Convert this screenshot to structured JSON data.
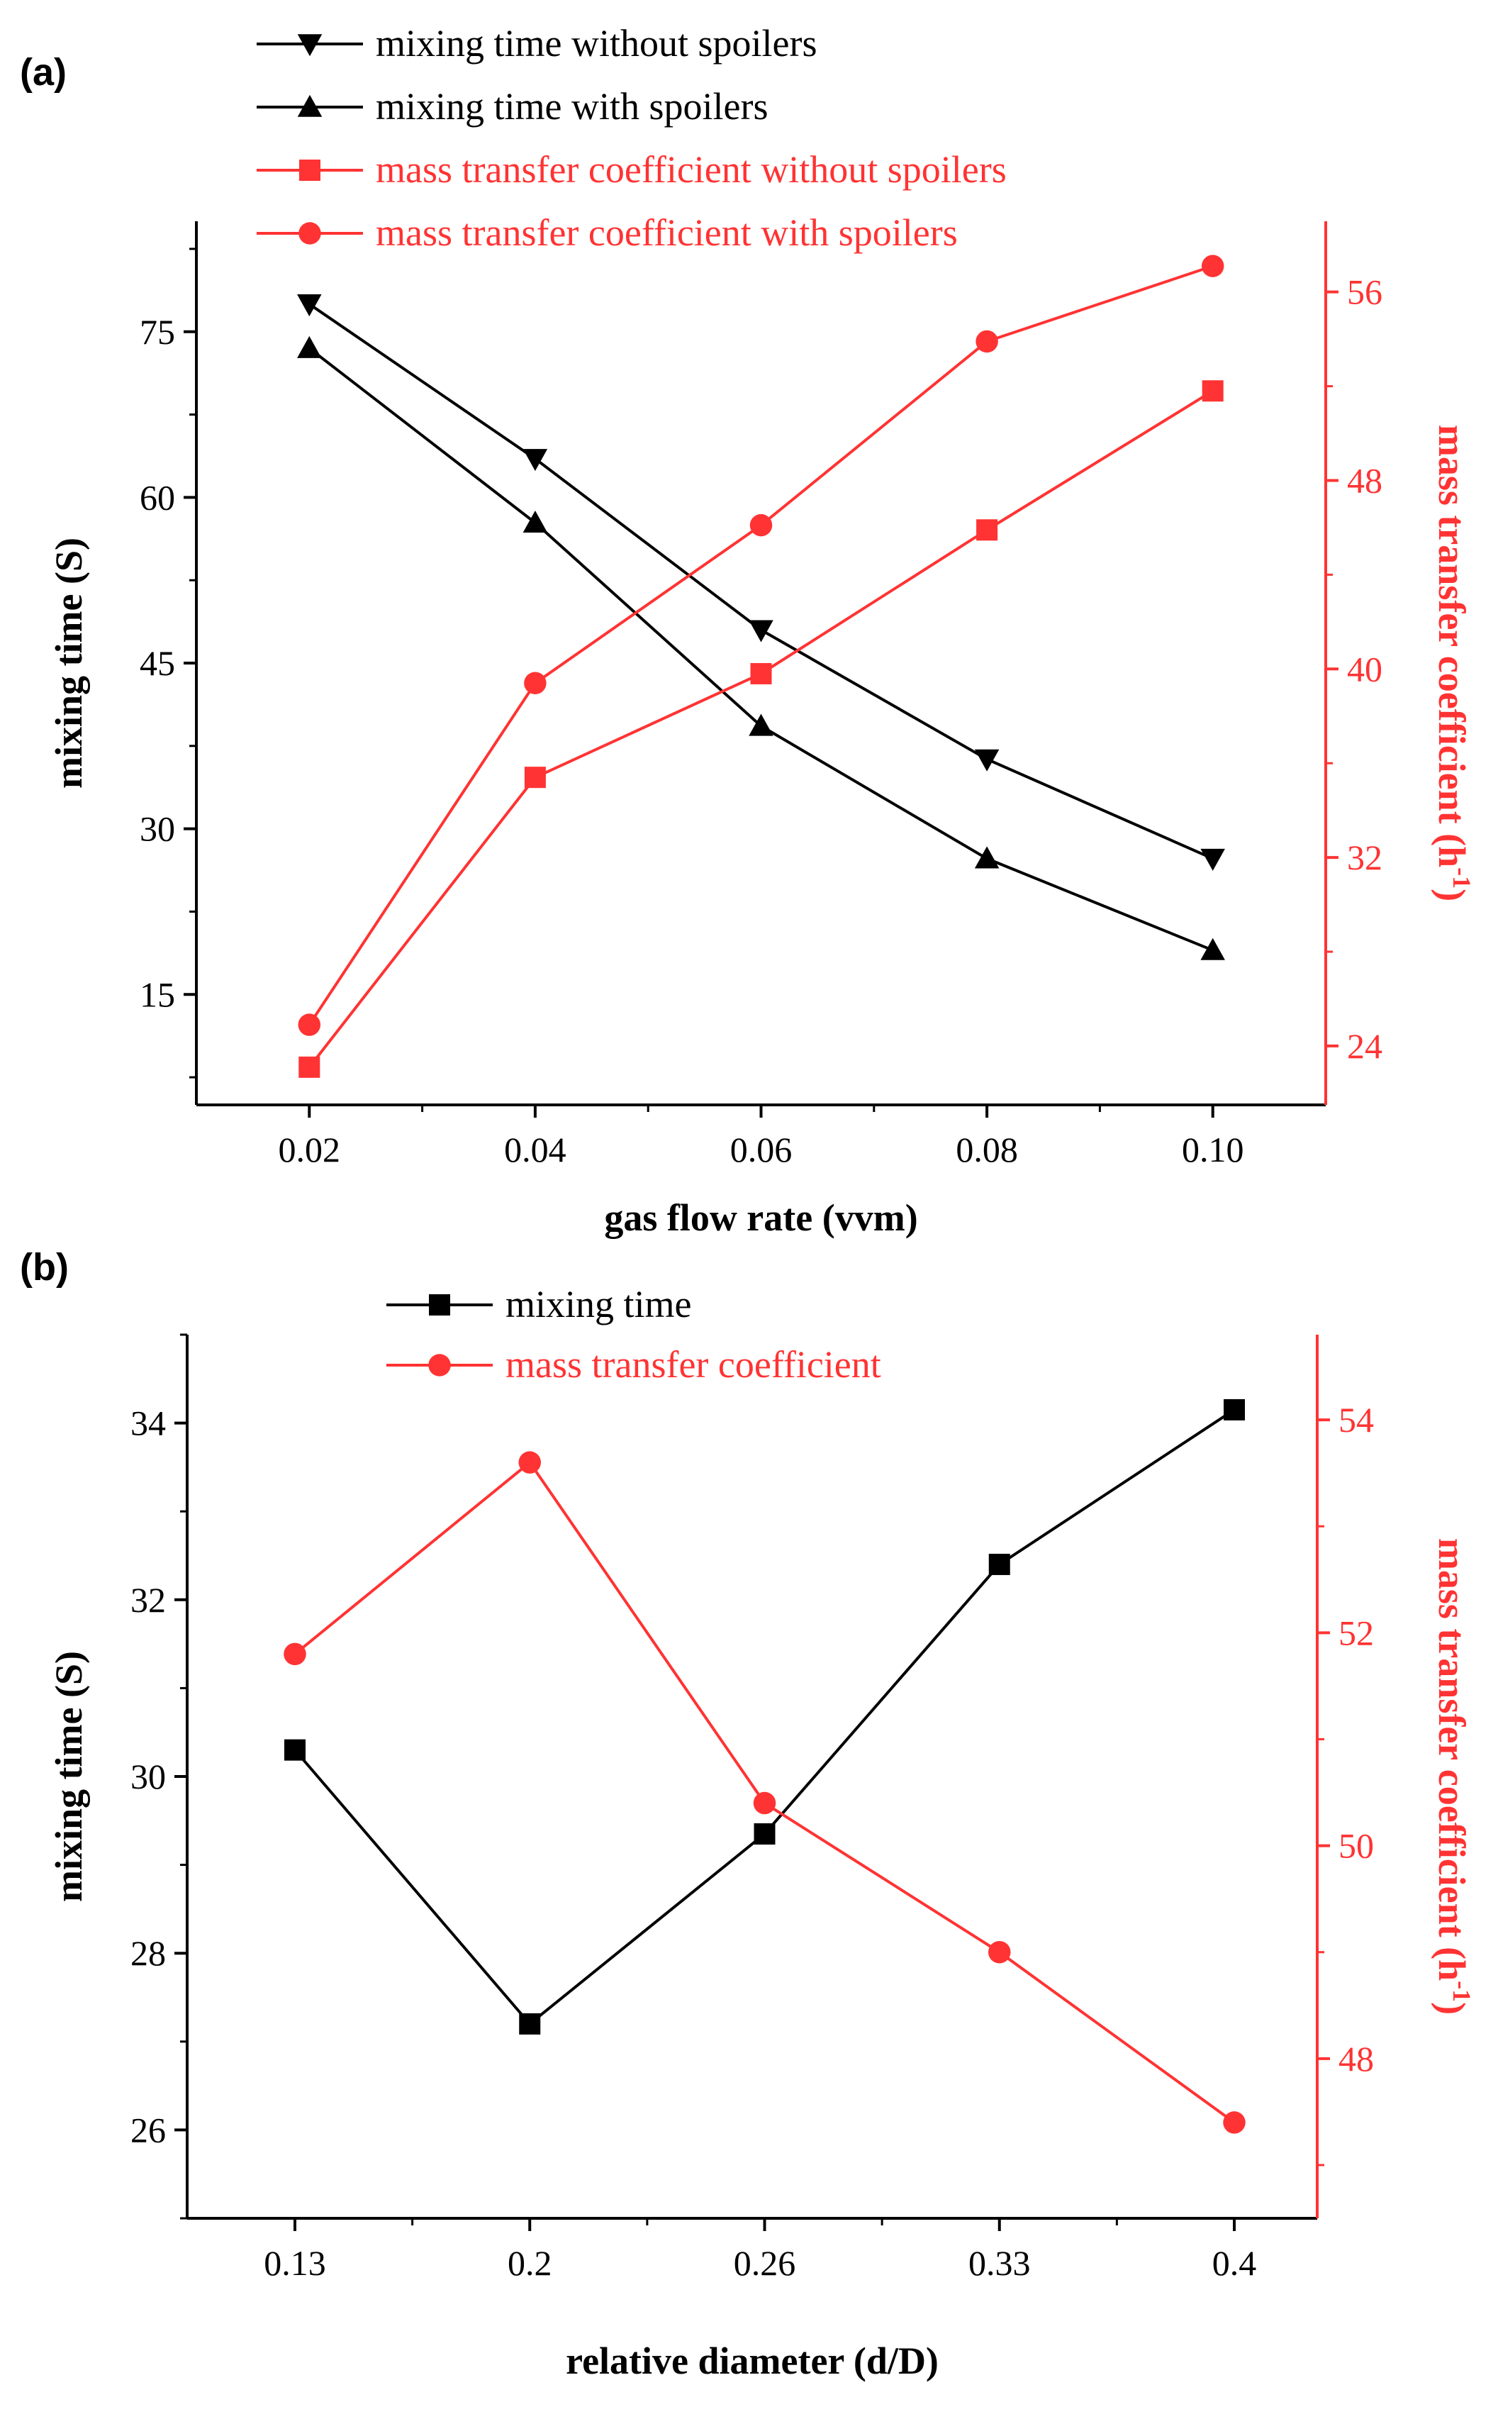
{
  "colors": {
    "black": "#000000",
    "red": "#ff3333"
  },
  "chart_data": [
    {
      "panel": "(a)",
      "type": "line",
      "xlabel": "gas flow rate (vvm)",
      "ylabel": "mixing time (S)",
      "y2label": "mass transfer coefficient (h",
      "y2label_sup": "-1",
      "y2label_close": ")",
      "x": [
        0.02,
        0.04,
        0.06,
        0.08,
        0.1
      ],
      "xlim": [
        0.01,
        0.11
      ],
      "xticks": [
        "0.02",
        "0.04",
        "0.06",
        "0.08",
        "0.10"
      ],
      "ylim": [
        5,
        85
      ],
      "yticks": [
        "15",
        "30",
        "45",
        "60",
        "75"
      ],
      "y2lim": [
        21.5,
        59
      ],
      "y2ticks": [
        "24",
        "32",
        "40",
        "48",
        "56"
      ],
      "legend_position": "top",
      "series": [
        {
          "name": "mixing time without spoilers",
          "axis": "left",
          "marker": "triangle-down",
          "color": "#000000",
          "values": [
            77.5,
            63.5,
            48,
            36.3,
            27.3
          ]
        },
        {
          "name": "mixing time with spoilers",
          "axis": "left",
          "marker": "triangle-up",
          "color": "#000000",
          "values": [
            73.5,
            57.7,
            39.3,
            27.3,
            19
          ]
        },
        {
          "name": "mass transfer coefficient without spoilers",
          "axis": "right",
          "marker": "square",
          "color": "#ff3333",
          "values": [
            23.1,
            35.4,
            39.8,
            45.9,
            51.8
          ]
        },
        {
          "name": "mass transfer coefficient with spoilers",
          "axis": "right",
          "marker": "circle",
          "color": "#ff3333",
          "values": [
            24.9,
            39.4,
            46.1,
            53.9,
            57.1
          ]
        }
      ]
    },
    {
      "panel": "(b)",
      "type": "line",
      "xlabel": "relative diameter (d/D)",
      "ylabel": "mixing time (S)",
      "y2label": "mass transfer coefficient (h",
      "y2label_sup": "-1",
      "y2label_close": ")",
      "categories": [
        "0.13",
        "0.2",
        "0.26",
        "0.33",
        "0.4"
      ],
      "ylim": [
        25,
        35
      ],
      "yticks": [
        "26",
        "28",
        "30",
        "32",
        "34"
      ],
      "y2lim": [
        46.5,
        54.8
      ],
      "y2ticks": [
        "48",
        "50",
        "52",
        "54"
      ],
      "legend_position": "top",
      "series": [
        {
          "name": "mixing time",
          "axis": "left",
          "marker": "square",
          "color": "#000000",
          "values": [
            30.3,
            27.2,
            29.35,
            32.4,
            34.15
          ]
        },
        {
          "name": "mass transfer coefficient",
          "axis": "right",
          "marker": "circle",
          "color": "#ff3333",
          "values": [
            51.8,
            53.6,
            50.4,
            49,
            47.4
          ]
        }
      ]
    }
  ]
}
